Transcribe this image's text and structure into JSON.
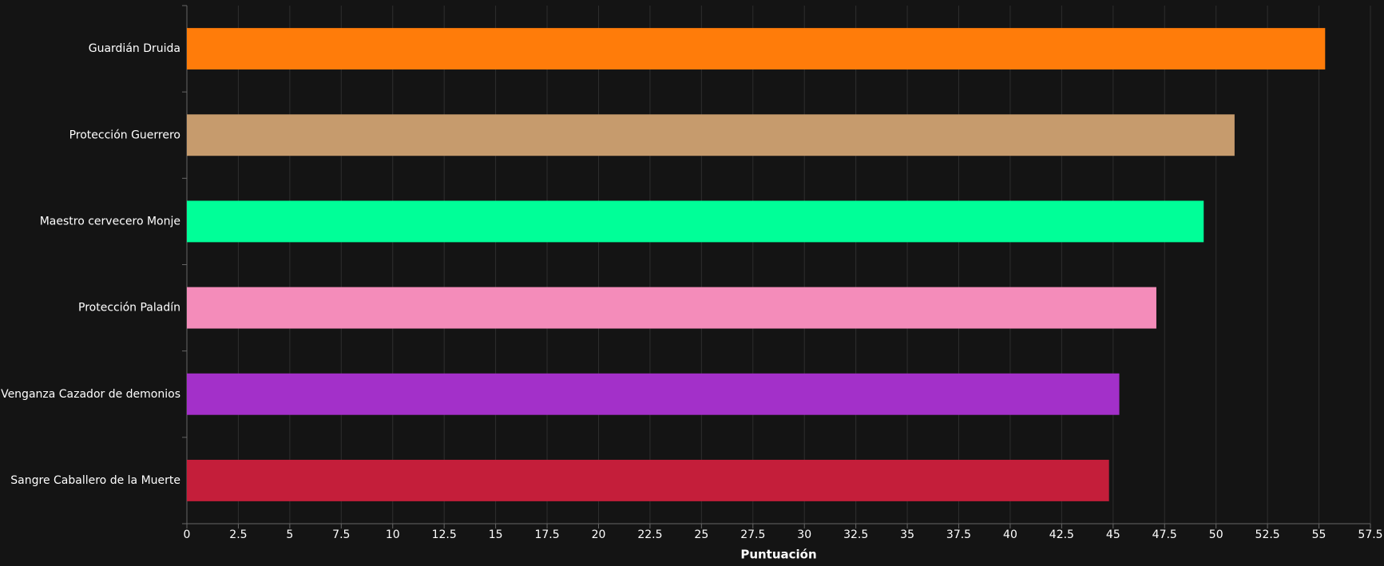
{
  "chart_data": {
    "type": "bar",
    "orientation": "horizontal",
    "x_label": "Puntuación",
    "categories": [
      "Guardián Druida",
      "Protección Guerrero",
      "Maestro cervecero Monje",
      "Protección Paladín",
      "Venganza Cazador de demonios",
      "Sangre Caballero de la Muerte"
    ],
    "values": [
      55.3,
      50.9,
      49.4,
      47.1,
      45.3,
      44.8
    ],
    "colors": [
      "#FF7C0A",
      "#C69B6D",
      "#00FF98",
      "#F48CBA",
      "#A330C9",
      "#C41E3A"
    ],
    "xlim": [
      0,
      57.5
    ],
    "xticks": [
      0,
      2.5,
      5,
      7.5,
      10,
      12.5,
      15,
      17.5,
      20,
      22.5,
      25,
      27.5,
      30,
      32.5,
      35,
      37.5,
      40,
      42.5,
      45,
      47.5,
      50,
      52.5,
      55,
      57.5
    ],
    "grid": true
  }
}
